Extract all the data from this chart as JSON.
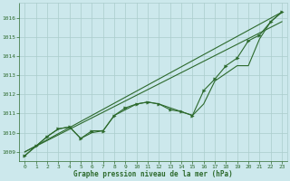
{
  "title": "Graphe pression niveau de la mer (hPa)",
  "bg_color": "#cce8ec",
  "grid_color": "#aacccc",
  "line_color": "#2d6a2d",
  "xlim": [
    -0.5,
    23.5
  ],
  "ylim": [
    1008.5,
    1016.8
  ],
  "yticks": [
    1009,
    1010,
    1011,
    1012,
    1013,
    1014,
    1015,
    1016
  ],
  "xticks": [
    0,
    1,
    2,
    3,
    4,
    5,
    6,
    7,
    8,
    9,
    10,
    11,
    12,
    13,
    14,
    15,
    16,
    17,
    18,
    19,
    20,
    21,
    22,
    23
  ],
  "straight_line1": [
    1009.0,
    1016.3
  ],
  "straight_line2": [
    1009.0,
    1015.8
  ],
  "curve_no_marker": [
    1008.8,
    1009.3,
    1009.8,
    1010.2,
    1010.3,
    1009.7,
    1010.0,
    1010.1,
    1010.9,
    1011.2,
    1011.5,
    1011.6,
    1011.5,
    1011.3,
    1011.1,
    1010.9,
    1011.5,
    1012.7,
    1013.1,
    1013.5,
    1013.5,
    1014.9,
    1015.8,
    1016.3
  ],
  "curve_marker": [
    1008.8,
    1009.3,
    1009.8,
    1010.2,
    1010.3,
    1009.7,
    1010.1,
    1010.1,
    1010.9,
    1011.3,
    1011.5,
    1011.6,
    1011.5,
    1011.2,
    1011.1,
    1010.9,
    1012.2,
    1012.8,
    1013.5,
    1013.9,
    1014.8,
    1015.1,
    1015.8,
    1016.3
  ]
}
